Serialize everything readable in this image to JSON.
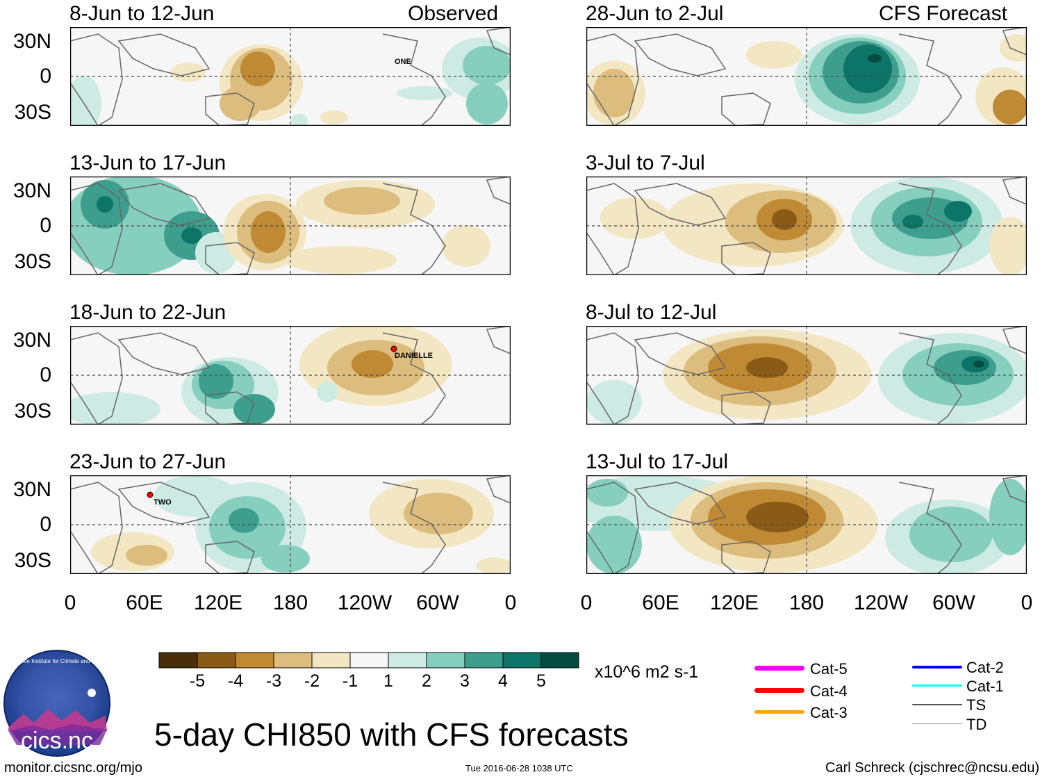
{
  "main_title": "5-day CHI850 with CFS forecasts",
  "observed_label": "Observed",
  "forecast_label": "CFS Forecast",
  "lat_labels": [
    "30N",
    "0",
    "30S"
  ],
  "lon_labels": [
    "0",
    "60E",
    "120E",
    "180",
    "120W",
    "60W",
    "0"
  ],
  "panels_left": [
    {
      "date_range": "8-Jun to 12-Jun"
    },
    {
      "date_range": "13-Jun to 17-Jun"
    },
    {
      "date_range": "18-Jun to 22-Jun"
    },
    {
      "date_range": "23-Jun to 27-Jun"
    }
  ],
  "panels_right": [
    {
      "date_range": "28-Jun to 2-Jul"
    },
    {
      "date_range": "3-Jul to 7-Jul"
    },
    {
      "date_range": "8-Jul to 12-Jul"
    },
    {
      "date_range": "13-Jul to 17-Jul"
    }
  ],
  "storm_labels": {
    "one": "ONE",
    "danielle": "DANIELLE",
    "two": "TWO"
  },
  "colorbar": {
    "ticks": [
      "-5",
      "-4",
      "-3",
      "-2",
      "-1",
      "1",
      "2",
      "3",
      "4",
      "5"
    ],
    "units": "x10^6 m2 s-1",
    "colors": [
      "#4a2e0a",
      "#8a5a17",
      "#c08a35",
      "#dcbd7e",
      "#f3e6c3",
      "#f6f6f6",
      "#cdebe2",
      "#86cfbf",
      "#3d9e8e",
      "#0d7468",
      "#064b40"
    ]
  },
  "legend": [
    {
      "label": "Cat-5",
      "color": "#ff00ff"
    },
    {
      "label": "Cat-4",
      "color": "#ff0000"
    },
    {
      "label": "Cat-3",
      "color": "#ffa500"
    },
    {
      "label": "Cat-2",
      "color": "#0000ff"
    },
    {
      "label": "Cat-1",
      "color": "#00ffff"
    },
    {
      "label": "TS",
      "color": "#555555"
    },
    {
      "label": "TD",
      "color": "#999999"
    }
  ],
  "logo_text": "cics.nc",
  "logo_ring_text": "Cooperative Institute for Climate and Satellites",
  "url": "monitor.cicsnc.org/mjo",
  "timestamp": "Tue 2016-06-28 1038 UTC",
  "author": "Carl Schreck (cjschrec@ncsu.edu)"
}
